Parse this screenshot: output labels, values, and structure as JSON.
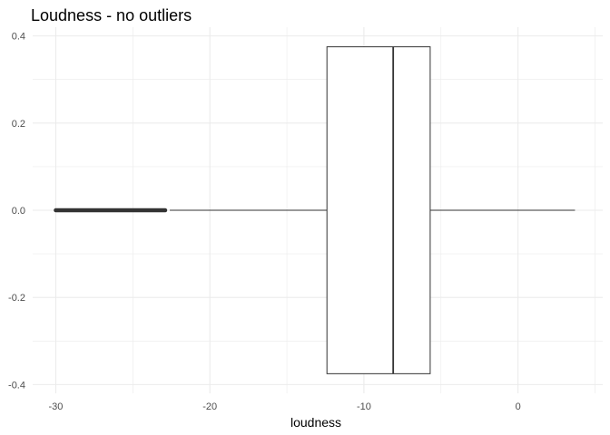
{
  "chart_data": {
    "type": "boxplot",
    "title": "Loudness - no outliers",
    "xlabel": "loudness",
    "ylabel": "",
    "xlim": [
      -31.5,
      5.5
    ],
    "ylim": [
      -0.42,
      0.42
    ],
    "x_ticks": [
      -30,
      -20,
      -10,
      0
    ],
    "x_tick_labels": [
      "-30",
      "-20",
      "-10",
      "0"
    ],
    "y_ticks": [
      -0.4,
      -0.2,
      0.0,
      0.2,
      0.4
    ],
    "y_tick_labels": [
      "-0.4",
      "-0.2",
      "0.0",
      "0.2",
      "0.4"
    ],
    "grid": true,
    "box": {
      "whisker_low": -22.6,
      "q1": -12.4,
      "median": -8.1,
      "q3": -5.7,
      "whisker_high": 3.7,
      "y_center": 0.0,
      "box_half_height": 0.375
    },
    "outlier_range": [
      -30.0,
      -22.9
    ],
    "colors": {
      "box_fill": "#ffffff",
      "line": "#333333",
      "grid": "#ebebeb"
    }
  }
}
